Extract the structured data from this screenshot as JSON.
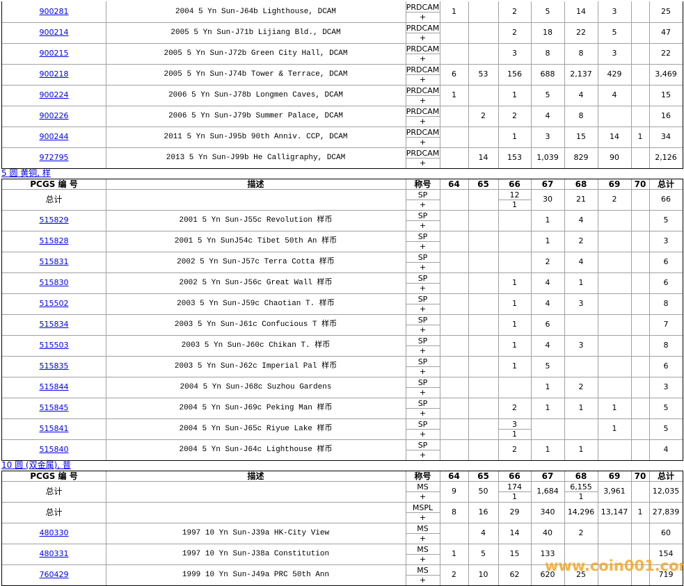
{
  "header": [
    "PCGS 编 号",
    "描述",
    "称号",
    "64",
    "65",
    "66",
    "67",
    "68",
    "69",
    "70",
    "总计"
  ],
  "plus": "+",
  "watermark": "www.coin001.com",
  "sections": [
    {
      "rows": [
        {
          "pcgs": "900281",
          "description": "2004 5 Yn Sun-J64b Lighthouse, DCAM",
          "designation": "PRDCAM",
          "counts": [
            "1",
            null,
            "2",
            "5",
            "14",
            "3",
            null,
            "25"
          ]
        },
        {
          "pcgs": "900214",
          "description": "2005 5 Yn Sun-J71b Lijiang Bld., DCAM",
          "designation": "PRDCAM",
          "counts": [
            null,
            null,
            "2",
            "18",
            "22",
            "5",
            null,
            "47"
          ]
        },
        {
          "pcgs": "900215",
          "description": "2005 5 Yn Sun-J72b Green City Hall, DCAM",
          "designation": "PRDCAM",
          "counts": [
            null,
            null,
            "3",
            "8",
            "8",
            "3",
            null,
            "22"
          ]
        },
        {
          "pcgs": "900218",
          "description": "2005 5 Yn Sun-J74b Tower & Terrace, DCAM",
          "designation": "PRDCAM",
          "counts": [
            "6",
            "53",
            "156",
            "688",
            "2,137",
            "429",
            null,
            "3,469"
          ]
        },
        {
          "pcgs": "900224",
          "description": "2006 5 Yn Sun-J78b Longmen Caves, DCAM",
          "designation": "PRDCAM",
          "counts": [
            "1",
            null,
            "1",
            "5",
            "4",
            "4",
            null,
            "15"
          ]
        },
        {
          "pcgs": "900226",
          "description": "2006 5 Yn Sun-J79b Summer Palace, DCAM",
          "designation": "PRDCAM",
          "counts": [
            null,
            "2",
            "2",
            "4",
            "8",
            null,
            null,
            "16"
          ]
        },
        {
          "pcgs": "900244",
          "description": "2011 5 Yn Sun-J95b 90th Anniv. CCP, DCAM",
          "designation": "PRDCAM",
          "counts": [
            null,
            null,
            "1",
            "3",
            "15",
            "14",
            "1",
            "34"
          ]
        },
        {
          "pcgs": "972795",
          "description": "2013 5 Yn Sun-J99b He Calligraphy, DCAM",
          "designation": "PRDCAM",
          "counts": [
            null,
            "14",
            "153",
            "1,039",
            "829",
            "90",
            null,
            "2,126"
          ]
        }
      ]
    },
    {
      "label": "5 圆 黄铜, 样",
      "rows": [
        {
          "label": "总计",
          "designation": "SP",
          "counts": [
            null,
            null,
            {
              "top": "12",
              "bottom": "1"
            },
            "30",
            "21",
            "2",
            null,
            "66"
          ]
        },
        {
          "pcgs": "515829",
          "description": "2001 5 Yn Sun-J55c Revolution 样币",
          "designation": "SP",
          "counts": [
            null,
            null,
            null,
            "1",
            "4",
            null,
            null,
            "5"
          ]
        },
        {
          "pcgs": "515828",
          "description": "2001 5 Yn SunJ54c Tibet 50th An 样币",
          "designation": "SP",
          "counts": [
            null,
            null,
            null,
            "1",
            "2",
            null,
            null,
            "3"
          ]
        },
        {
          "pcgs": "515831",
          "description": "2002 5 Yn Sun-J57c Terra Cotta 样币",
          "designation": "SP",
          "counts": [
            null,
            null,
            null,
            "2",
            "4",
            null,
            null,
            "6"
          ]
        },
        {
          "pcgs": "515830",
          "description": "2002 5 Yn Sun-J56c Great Wall 样币",
          "designation": "SP",
          "counts": [
            null,
            null,
            "1",
            "4",
            "1",
            null,
            null,
            "6"
          ]
        },
        {
          "pcgs": "515502",
          "description": "2003 5 Yn Sun-J59c Chaotian T. 样币",
          "designation": "SP",
          "counts": [
            null,
            null,
            "1",
            "4",
            "3",
            null,
            null,
            "8"
          ]
        },
        {
          "pcgs": "515834",
          "description": "2003 5 Yn Sun-J61c Confucious T 样币",
          "designation": "SP",
          "counts": [
            null,
            null,
            "1",
            "6",
            null,
            null,
            null,
            "7"
          ]
        },
        {
          "pcgs": "515503",
          "description": "2003 5 Yn Sun-J60c Chikan T. 样币",
          "designation": "SP",
          "counts": [
            null,
            null,
            "1",
            "4",
            "3",
            null,
            null,
            "8"
          ]
        },
        {
          "pcgs": "515835",
          "description": "2003 5 Yn Sun-J62c Imperial Pal 样币",
          "designation": "SP",
          "counts": [
            null,
            null,
            "1",
            "5",
            null,
            null,
            null,
            "6"
          ]
        },
        {
          "pcgs": "515844",
          "description": "2004 5 Yn Sun-J68c Suzhou Gardens",
          "designation": "SP",
          "counts": [
            null,
            null,
            null,
            "1",
            "2",
            null,
            null,
            "3"
          ]
        },
        {
          "pcgs": "515845",
          "description": "2004 5 Yn Sun-J69c Peking Man 样币",
          "designation": "SP",
          "counts": [
            null,
            null,
            "2",
            "1",
            "1",
            "1",
            null,
            "5"
          ]
        },
        {
          "pcgs": "515841",
          "description": "2004 5 Yn Sun-J65c Riyue Lake 样币",
          "designation": "SP",
          "counts": [
            null,
            null,
            {
              "top": "3",
              "bottom": "1"
            },
            null,
            null,
            "1",
            null,
            "5"
          ]
        },
        {
          "pcgs": "515840",
          "description": "2004 5 Yn Sun-J64c Lighthouse 样币",
          "designation": "SP",
          "counts": [
            null,
            null,
            "2",
            "1",
            "1",
            null,
            null,
            "4"
          ]
        }
      ]
    },
    {
      "label": "10 圆 (双金属), 普",
      "rows": [
        {
          "label": "总计",
          "designation": "MS",
          "counts": [
            "9",
            "50",
            {
              "top": "174",
              "bottom": "1"
            },
            "1,684",
            {
              "top": "6,155",
              "bottom": "1"
            },
            "3,961",
            null,
            "12,035"
          ]
        },
        {
          "label": "总计",
          "designation": "MSPL",
          "counts": [
            "8",
            "16",
            "29",
            "340",
            "14,296",
            "13,147",
            "1",
            "27,839"
          ]
        },
        {
          "pcgs": "480330",
          "description": "1997 10 Yn Sun-J39a HK-City View",
          "designation": "MS",
          "counts": [
            null,
            "4",
            "14",
            "40",
            "2",
            null,
            null,
            "60"
          ]
        },
        {
          "pcgs": "480331",
          "description": "1997 10 Yn Sun-J38a Constitution",
          "designation": "MS",
          "counts": [
            "1",
            "5",
            "15",
            "133",
            null,
            null,
            null,
            "154"
          ]
        },
        {
          "pcgs": "760429",
          "description": "1999 10 Yn Sun-J49a PRC 50th Ann",
          "designation": "MS",
          "counts": [
            "2",
            "10",
            "62",
            "620",
            "25",
            null,
            null,
            "719"
          ]
        }
      ]
    }
  ]
}
